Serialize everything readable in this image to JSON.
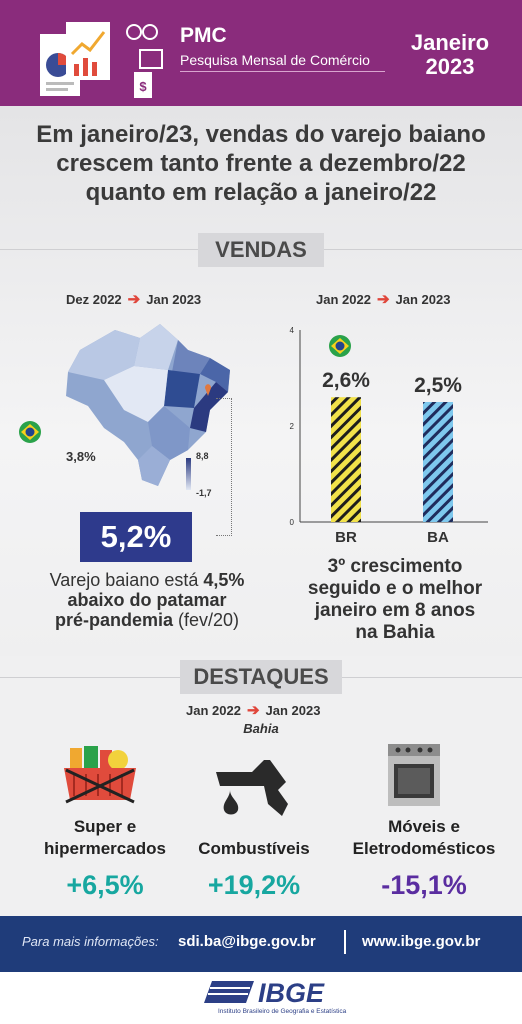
{
  "header": {
    "title": "PMC",
    "subtitle": "Pesquisa Mensal de Comércio",
    "month": "Janeiro",
    "year": "2023"
  },
  "headline": {
    "line1": "Em janeiro/23, vendas do varejo baiano",
    "line2": "crescem tanto frente a dezembro/22",
    "line3": "quanto em relação a janeiro/22"
  },
  "vendas": {
    "section_label": "VENDAS",
    "left": {
      "from": "Dez 2022",
      "to": "Jan 2023",
      "brazil_pct": "3,8%",
      "legend_max": "8,8",
      "legend_min": "-1,7",
      "bahia_pct": "5,2%",
      "note_pre": "Varejo baiano está ",
      "note_bold1": "4,5%",
      "note_line2": "abaixo do patamar",
      "note_line3_bold": "pré-pandemia",
      "note_line3_rest": " (fev/20)"
    },
    "right": {
      "from": "Jan 2022",
      "to": "Jan 2023",
      "note_line1": "3º crescimento",
      "note_line2": "seguido e o melhor",
      "note_line3": "janeiro em 8 anos",
      "note_line4": "na Bahia"
    }
  },
  "chart_data": {
    "type": "bar",
    "categories": [
      "BR",
      "BA"
    ],
    "values": [
      2.6,
      2.5
    ],
    "data_labels": [
      "2,6%",
      "2,5%"
    ],
    "ylim": [
      0,
      4
    ],
    "yticks": [
      "0",
      "2",
      "4"
    ]
  },
  "destaques": {
    "section_label": "DESTAQUES",
    "from": "Jan 2022",
    "to": "Jan 2023",
    "region": "Bahia",
    "items": [
      {
        "label1": "Super e",
        "label2": "hipermercados",
        "value": "+6,5%",
        "color": "#17a7a0"
      },
      {
        "label1": "",
        "label2": "Combustíveis",
        "value": "+19,2%",
        "color": "#17a7a0"
      },
      {
        "label1": "Móveis e",
        "label2": "Eletrodomésticos",
        "value": "-15,1%",
        "color": "#5a2da0"
      }
    ]
  },
  "footer": {
    "info_label": "Para mais informações:",
    "email": "sdi.ba@ibge.gov.br",
    "website": "www.ibge.gov.br"
  },
  "logo": {
    "name": "IBGE",
    "subtitle": "Instituto Brasileiro de Geografia e Estatística"
  },
  "colors": {
    "header": "#8a2c7c",
    "bahia_box": "#2e3a8c",
    "footer": "#1f3c7a",
    "positive": "#17a7a0",
    "negative": "#5a2da0",
    "br_bar": "#f2e24a",
    "ba_bar": "#7ec8ee"
  },
  "icons": [
    "report-icon",
    "brazil-flag-icon",
    "shopping-basket-icon",
    "fuel-nozzle-icon",
    "stove-icon",
    "location-pin-icon"
  ]
}
